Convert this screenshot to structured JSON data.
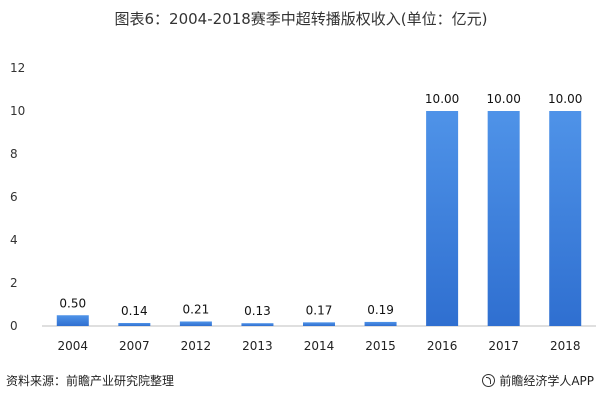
{
  "chart_data": {
    "type": "bar",
    "title": "图表6：2004-2018赛季中超转播版权收入(单位：亿元)",
    "categories": [
      "2004",
      "2007",
      "2012",
      "2013",
      "2014",
      "2015",
      "2016",
      "2017",
      "2018"
    ],
    "values": [
      0.5,
      0.14,
      0.21,
      0.13,
      0.17,
      0.19,
      10.0,
      10.0,
      10.0
    ],
    "data_labels": [
      "0.50",
      "0.14",
      "0.21",
      "0.13",
      "0.17",
      "0.19",
      "10.00",
      "10.00",
      "10.00"
    ],
    "yticks": [
      "0",
      "2",
      "4",
      "6",
      "8",
      "10",
      "12"
    ],
    "ylim": [
      0,
      12
    ],
    "xlabel": "",
    "ylabel": "",
    "grid": false,
    "bar_color_top": "#4f93e8",
    "bar_color_bottom": "#2f6fd0",
    "axis_color": "#bfbfbf"
  },
  "footer": {
    "source": "资料来源：前瞻产业研究院整理",
    "brand": "前瞻经济学人APP",
    "brand_icon": "brand-logo-icon"
  }
}
